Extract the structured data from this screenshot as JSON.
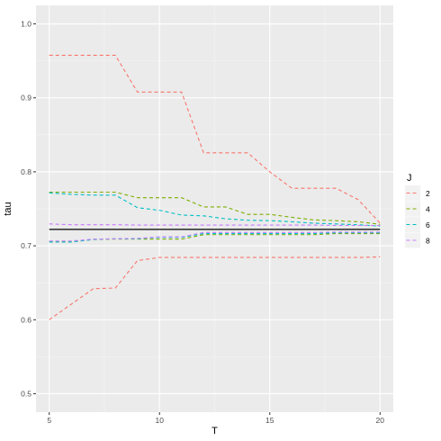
{
  "chart_data": {
    "type": "line",
    "xlabel": "T",
    "ylabel": "tau",
    "xlim": [
      4.4,
      20.6
    ],
    "ylim": [
      0.475,
      1.025
    ],
    "x_ticks": [
      5,
      10,
      15,
      20
    ],
    "y_ticks": [
      0.5,
      0.6,
      0.7,
      0.8,
      0.9,
      1.0
    ],
    "y_tick_labels": [
      "0.5",
      "0.6",
      "0.7",
      "0.8",
      "0.9",
      "1.0"
    ],
    "grid": true,
    "legend_title": "J",
    "legend_position": "right",
    "reference_line": {
      "y": 0.7222,
      "color": "#000000"
    },
    "x": [
      5,
      6,
      7,
      8,
      9,
      10,
      11,
      12,
      13,
      14,
      15,
      16,
      17,
      18,
      19,
      20
    ],
    "series": [
      {
        "name": "2",
        "color": "#F8766D",
        "line": "dashed",
        "upper": [
          0.9575,
          0.9575,
          0.9575,
          0.9575,
          0.9078,
          0.9078,
          0.9078,
          0.8257,
          0.8257,
          0.8257,
          0.8,
          0.7778,
          0.7778,
          0.7778,
          0.7625,
          0.7308
        ],
        "lower": [
          0.6,
          0.621,
          0.642,
          0.6429,
          0.68,
          0.6842,
          0.6842,
          0.6842,
          0.6842,
          0.6842,
          0.6842,
          0.6842,
          0.6842,
          0.6842,
          0.6842,
          0.685
        ]
      },
      {
        "name": "4",
        "color": "#7CAE00",
        "line": "dashed",
        "upper": [
          0.7725,
          0.7725,
          0.7725,
          0.7725,
          0.765,
          0.765,
          0.765,
          0.7525,
          0.7525,
          0.7425,
          0.7425,
          0.7385,
          0.735,
          0.734,
          0.7325,
          0.729
        ],
        "lower": [
          0.7055,
          0.7055,
          0.7085,
          0.709,
          0.709,
          0.709,
          0.709,
          0.715,
          0.715,
          0.715,
          0.715,
          0.715,
          0.715,
          0.7165,
          0.7165,
          0.7165
        ]
      },
      {
        "name": "6",
        "color": "#00BFC4",
        "line": "dashed",
        "upper": [
          0.7715,
          0.7695,
          0.7685,
          0.7685,
          0.7515,
          0.748,
          0.7415,
          0.7405,
          0.7365,
          0.7345,
          0.734,
          0.7325,
          0.7305,
          0.7295,
          0.7285,
          0.7265
        ],
        "lower": [
          0.705,
          0.705,
          0.7085,
          0.7095,
          0.7095,
          0.7115,
          0.7115,
          0.7165,
          0.7165,
          0.7165,
          0.7165,
          0.7165,
          0.7165,
          0.7175,
          0.7175,
          0.7175
        ]
      },
      {
        "name": "8",
        "color": "#C77CFF",
        "line": "dashed",
        "upper": [
          0.7295,
          0.7285,
          0.7285,
          0.7285,
          0.728,
          0.728,
          0.728,
          0.728,
          0.728,
          0.728,
          0.728,
          0.728,
          0.728,
          0.7275,
          0.7275,
          0.7275
        ],
        "lower": [
          0.7065,
          0.7065,
          0.709,
          0.7095,
          0.71,
          0.712,
          0.712,
          0.718,
          0.718,
          0.718,
          0.718,
          0.718,
          0.718,
          0.7185,
          0.7185,
          0.7185
        ]
      }
    ]
  }
}
